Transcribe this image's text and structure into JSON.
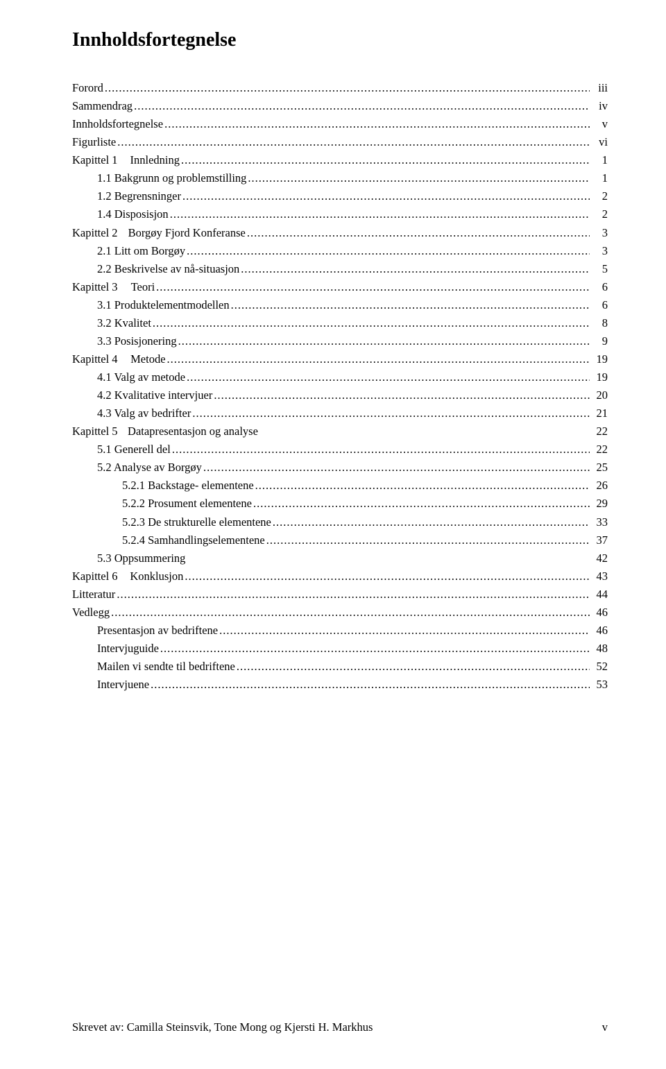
{
  "title": "Innholdsfortegnelse",
  "entries": [
    {
      "label": "Forord",
      "page": "iii",
      "indent": 0
    },
    {
      "label": "Sammendrag",
      "page": "iv",
      "indent": 0
    },
    {
      "label": "Innholdsfortegnelse",
      "page": "v",
      "indent": 0
    },
    {
      "label": "Figurliste",
      "page": "vi",
      "indent": 0
    },
    {
      "label": "Kapittel 1",
      "suffix": "Innledning",
      "page": "1",
      "indent": 0,
      "gap": true
    },
    {
      "label": "1.1 Bakgrunn og problemstilling",
      "page": "1",
      "indent": 1
    },
    {
      "label": "1.2 Begrensninger",
      "page": "2",
      "indent": 1
    },
    {
      "label": "1.4 Disposisjon",
      "page": "2",
      "indent": 1
    },
    {
      "label": "Kapittel 2",
      "suffix": "Borgøy Fjord Konferanse",
      "page": "3",
      "indent": 0,
      "gap": true
    },
    {
      "label": "2.1 Litt om Borgøy",
      "page": "3",
      "indent": 1
    },
    {
      "label": "2.2 Beskrivelse av nå-situasjon",
      "page": "5",
      "indent": 1
    },
    {
      "label": "Kapittel 3",
      "suffix": "Teori",
      "page": "6",
      "indent": 0,
      "gap": true
    },
    {
      "label": "3.1 Produktelementmodellen",
      "page": "6",
      "indent": 1
    },
    {
      "label": "3.2 Kvalitet",
      "page": "8",
      "indent": 1
    },
    {
      "label": "3.3 Posisjonering",
      "page": "9",
      "indent": 1
    },
    {
      "label": "Kapittel 4",
      "suffix": "Metode",
      "page": "19",
      "indent": 0,
      "gap": true
    },
    {
      "label": "4.1 Valg av metode",
      "page": "19",
      "indent": 1
    },
    {
      "label": "4.2 Kvalitative intervjuer",
      "page": "20",
      "indent": 1
    },
    {
      "label": "4.3 Valg av bedrifter",
      "page": "21",
      "indent": 1
    },
    {
      "label": "Kapittel 5",
      "suffix": "Datapresentasjon og analyse",
      "page": "22",
      "indent": 0,
      "gap": true,
      "nodots": true
    },
    {
      "label": "5.1 Generell del",
      "page": "22",
      "indent": 1
    },
    {
      "label": "5.2 Analyse av Borgøy",
      "page": "25",
      "indent": 1
    },
    {
      "label": "5.2.1 Backstage- elementene",
      "page": "26",
      "indent": 2
    },
    {
      "label": "5.2.2 Prosument elementene",
      "page": "29",
      "indent": 2
    },
    {
      "label": "5.2.3 De strukturelle elementene",
      "page": "33",
      "indent": 2
    },
    {
      "label": "5.2.4 Samhandlingselementene",
      "page": "37",
      "indent": 2
    },
    {
      "label": "5.3 Oppsummering",
      "page": "42",
      "indent": 1,
      "nodots": true
    },
    {
      "label": "Kapittel 6",
      "suffix": "Konklusjon",
      "page": "43",
      "indent": 0,
      "gap": true
    },
    {
      "label": "Litteratur",
      "page": "44",
      "indent": 0
    },
    {
      "label": "Vedlegg",
      "page": "46",
      "indent": 0
    },
    {
      "label": "Presentasjon av bedriftene",
      "page": "46",
      "indent": 1
    },
    {
      "label": "Intervjuguide",
      "page": "48",
      "indent": 1
    },
    {
      "label": "Mailen vi sendte til bedriftene",
      "page": "52",
      "indent": 1
    },
    {
      "label": "Intervjuene",
      "page": "53",
      "indent": 1
    }
  ],
  "footer": {
    "left": "Skrevet av: Camilla Steinsvik, Tone Mong og Kjersti H. Markhus",
    "right": "v"
  }
}
